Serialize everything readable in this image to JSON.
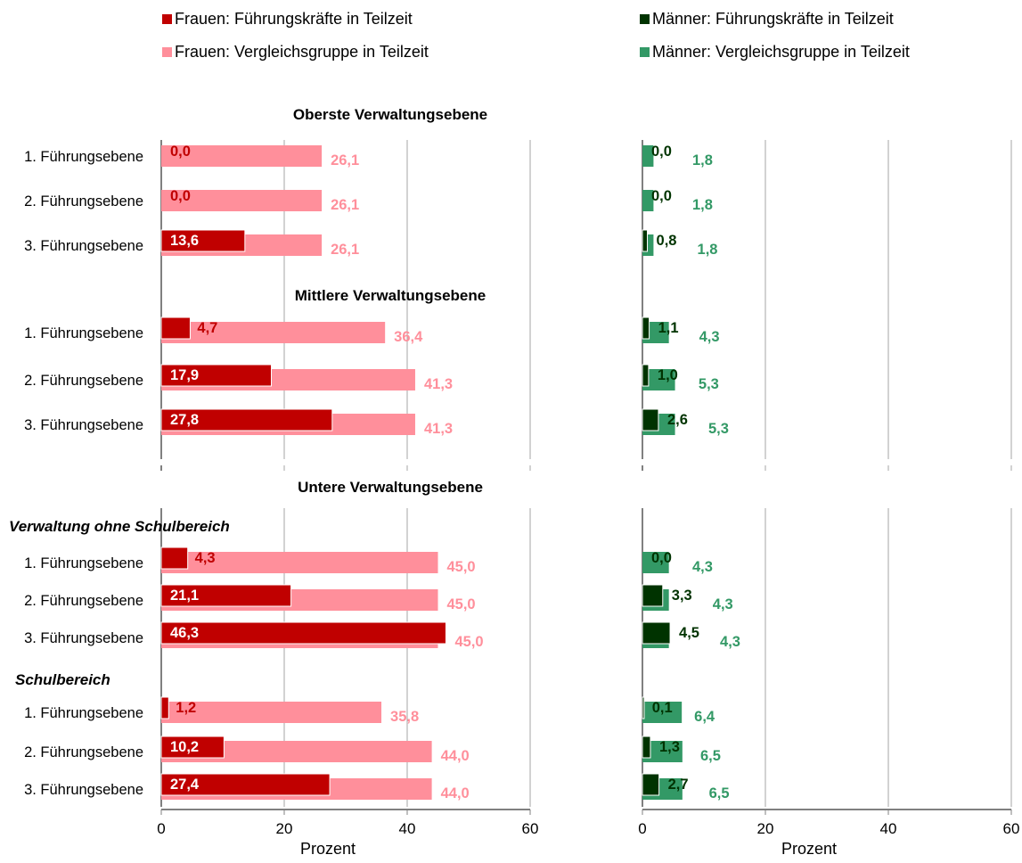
{
  "legend": {
    "women_leaders": "Frauen: Führungskräfte in Teilzeit",
    "women_comparison": "Frauen: Vergleichsgruppe in Teilzeit",
    "men_leaders": "Männer: Führungskräfte in Teilzeit",
    "men_comparison": "Männer: Vergleichsgruppe in Teilzeit"
  },
  "colors": {
    "women_leaders": "#c00000",
    "women_comparison": "#ff8f9b",
    "men_leaders": "#003300",
    "men_comparison": "#339966",
    "grid": "#a6a6a6"
  },
  "chart_data": {
    "type": "bar",
    "orientation": "horizontal",
    "xlabel": "Prozent",
    "xlim": [
      0,
      60
    ],
    "xticks": [
      0,
      20,
      40,
      60
    ],
    "grid": true,
    "legend_position": "top",
    "panels": [
      "Frauen",
      "Männer"
    ],
    "sections": [
      {
        "title": "Oberste Verwaltungsebene",
        "subtitle": "",
        "categories": [
          "1. Führungsebene",
          "2. Führungsebene",
          "3. Führungsebene"
        ],
        "women_leaders": [
          "0,0",
          "0,0",
          "13,6"
        ],
        "women_comparison": [
          "26,1",
          "26,1",
          "26,1"
        ],
        "men_leaders": [
          "0,0",
          "0,0",
          "0,8"
        ],
        "men_comparison": [
          "1,8",
          "1,8",
          "1,8"
        ]
      },
      {
        "title": "Mittlere Verwaltungsebene",
        "subtitle": "",
        "categories": [
          "1. Führungsebene",
          "2. Führungsebene",
          "3. Führungsebene"
        ],
        "women_leaders": [
          "4,7",
          "17,9",
          "27,8"
        ],
        "women_comparison": [
          "36,4",
          "41,3",
          "41,3"
        ],
        "men_leaders": [
          "1,1",
          "1,0",
          "2,6"
        ],
        "men_comparison": [
          "4,3",
          "5,3",
          "5,3"
        ]
      },
      {
        "title": "Untere Verwaltungsebene",
        "subtitle": "Verwaltung ohne Schulbereich",
        "categories": [
          "1. Führungsebene",
          "2. Führungsebene",
          "3. Führungsebene"
        ],
        "women_leaders": [
          "4,3",
          "21,1",
          "46,3"
        ],
        "women_comparison": [
          "45,0",
          "45,0",
          "45,0"
        ],
        "men_leaders": [
          "0,0",
          "3,3",
          "4,5"
        ],
        "men_comparison": [
          "4,3",
          "4,3",
          "4,3"
        ]
      },
      {
        "title": "",
        "subtitle": "Schulbereich",
        "categories": [
          "1. Führungsebene",
          "2. Führungsebene",
          "3. Führungsebene"
        ],
        "women_leaders": [
          "1,2",
          "10,2",
          "27,4"
        ],
        "women_comparison": [
          "35,8",
          "44,0",
          "44,0"
        ],
        "men_leaders": [
          "0,1",
          "1,3",
          "2,7"
        ],
        "men_comparison": [
          "6,4",
          "6,5",
          "6,5"
        ]
      }
    ]
  }
}
